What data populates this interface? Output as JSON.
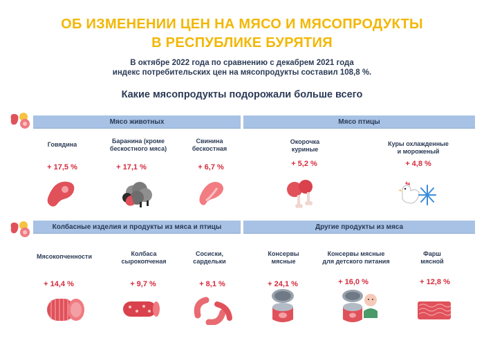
{
  "header": {
    "title_line1": "ОБ ИЗМЕНЕНИИ ЦЕН НА МЯСО И МЯСОПРОДУКТЫ",
    "title_line2": "В РЕСПУБЛИКЕ БУРЯТИЯ",
    "subtitle_line1": "В октябре 2022 года по сравнению с декабрем 2021 года",
    "subtitle_line2": "индекс потребительских цен на мясопродукты составил 108,8 %.",
    "question": "Какие мясопродукты подорожали больше всего"
  },
  "sections": {
    "animal": {
      "label": "Мясо животных"
    },
    "poultry": {
      "label": "Мясо птицы"
    },
    "sausage": {
      "label": "Колбасные изделия и продукты из мяса и птицы"
    },
    "other": {
      "label": "Другие продукты из мяса"
    }
  },
  "items": {
    "beef": {
      "label": "Говядина",
      "value": "+ 17,5 %",
      "icon": "steak-icon"
    },
    "lamb": {
      "label_line1": "Баранина (кроме",
      "label_line2": "бескостного мяса)",
      "value": "+ 17,1 %",
      "icon": "sheep-icon"
    },
    "pork": {
      "label_line1": "Свинина",
      "label_line2": "бескостная",
      "value": "+ 6,7 %",
      "icon": "pork-steak-icon"
    },
    "legs": {
      "label_line1": "Окорочка",
      "label_line2": "куриные",
      "value": "+ 5,2 %",
      "icon": "chicken-leg-icon"
    },
    "chicken": {
      "label_line1": "Куры охлажденные",
      "label_line2": "и мороженый",
      "value": "+ 4,8 %",
      "icon": "chicken-snowflake-icon"
    },
    "smoked": {
      "label": "Мясокопченности",
      "value": "+ 14,4 %",
      "icon": "smoked-meat-icon"
    },
    "salami": {
      "label_line1": "Колбаса",
      "label_line2": "сырокопченая",
      "value": "+ 9,7 %",
      "icon": "salami-icon"
    },
    "sausages": {
      "label_line1": "Сосиски,",
      "label_line2": "сардельки",
      "value": "+ 8,1 %",
      "icon": "sausages-icon"
    },
    "canned": {
      "label_line1": "Консервы",
      "label_line2": "мясные",
      "value": "+ 24,1 %",
      "icon": "can-icon"
    },
    "baby_canned": {
      "label_line1": "Консервы мясные",
      "label_line2": "для детского питания",
      "value": "+ 16,0 %",
      "icon": "baby-can-icon"
    },
    "mince": {
      "label_line1": "Фарш",
      "label_line2": "мясной",
      "value": "+ 12,8 %",
      "icon": "mince-icon"
    }
  },
  "colors": {
    "title": "#f2b705",
    "band": "#a7c2e4",
    "value": "#d42b3c",
    "meat": "#e0515a"
  }
}
